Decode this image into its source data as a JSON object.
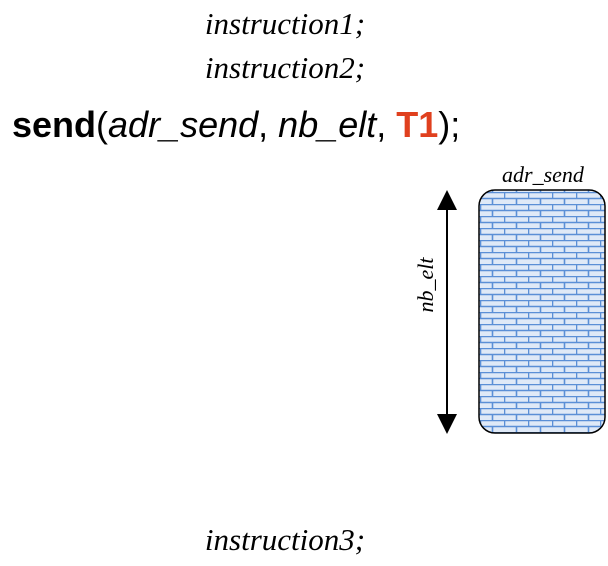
{
  "code": {
    "lines": [
      "instruction1;",
      "instruction2;"
    ],
    "call": {
      "keyword": "send",
      "open": "(",
      "arg1": "adr_send",
      "sep1": ", ",
      "arg2": "nb_elt",
      "sep2": ", ",
      "arg3": "T1",
      "close": ");"
    },
    "after": "instruction3;"
  },
  "buffer": {
    "address_label": "adr_send",
    "size_label": "nb_elt"
  }
}
